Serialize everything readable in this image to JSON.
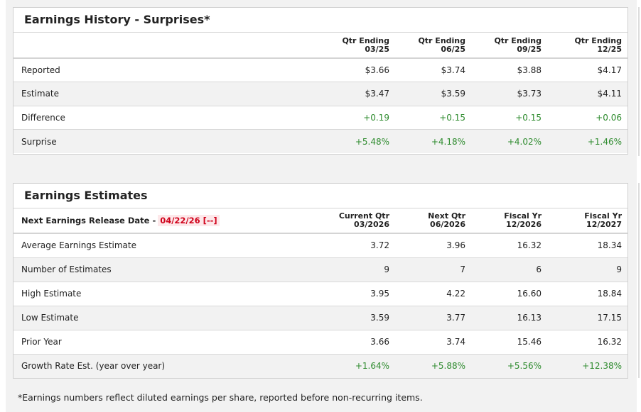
{
  "history": {
    "title": "Earnings History - Surprises*",
    "columns": [
      {
        "line1": "Qtr Ending",
        "line2": "03/25"
      },
      {
        "line1": "Qtr Ending",
        "line2": "06/25"
      },
      {
        "line1": "Qtr Ending",
        "line2": "09/25"
      },
      {
        "line1": "Qtr Ending",
        "line2": "12/25"
      }
    ],
    "rows": [
      {
        "label": "Reported",
        "values": [
          "$3.66",
          "$3.74",
          "$3.88",
          "$4.17"
        ]
      },
      {
        "label": "Estimate",
        "values": [
          "$3.47",
          "$3.59",
          "$3.73",
          "$4.11"
        ]
      },
      {
        "label": "Difference",
        "values": [
          "+0.19",
          "+0.15",
          "+0.15",
          "+0.06"
        ]
      },
      {
        "label": "Surprise",
        "values": [
          "+5.48%",
          "+4.18%",
          "+4.02%",
          "+1.46%"
        ]
      }
    ]
  },
  "estimates": {
    "title": "Earnings Estimates",
    "release_label": "Next Earnings Release Date -",
    "release_date": "04/22/26 [--]",
    "columns": [
      {
        "line1": "Current Qtr",
        "line2": "03/2026"
      },
      {
        "line1": "Next Qtr",
        "line2": "06/2026"
      },
      {
        "line1": "Fiscal Yr",
        "line2": "12/2026"
      },
      {
        "line1": "Fiscal Yr",
        "line2": "12/2027"
      }
    ],
    "rows": [
      {
        "label": "Average Earnings Estimate",
        "values": [
          "3.72",
          "3.96",
          "16.32",
          "18.34"
        ]
      },
      {
        "label": "Number of Estimates",
        "values": [
          "9",
          "7",
          "6",
          "9"
        ]
      },
      {
        "label": "High Estimate",
        "values": [
          "3.95",
          "4.22",
          "16.60",
          "18.84"
        ]
      },
      {
        "label": "Low Estimate",
        "values": [
          "3.59",
          "3.77",
          "16.13",
          "17.15"
        ]
      },
      {
        "label": "Prior Year",
        "values": [
          "3.66",
          "3.74",
          "15.46",
          "16.32"
        ]
      },
      {
        "label": "Growth Rate Est. (year over year)",
        "values": [
          "+1.64%",
          "+5.88%",
          "+5.56%",
          "+12.38%"
        ]
      }
    ]
  },
  "footnote": "*Earnings numbers reflect diluted earnings per share, reported before non-recurring items.",
  "colors": {
    "positive": "#2e8b2e",
    "release_date": "#d0021b",
    "alt_row": "#f2f2f2"
  }
}
